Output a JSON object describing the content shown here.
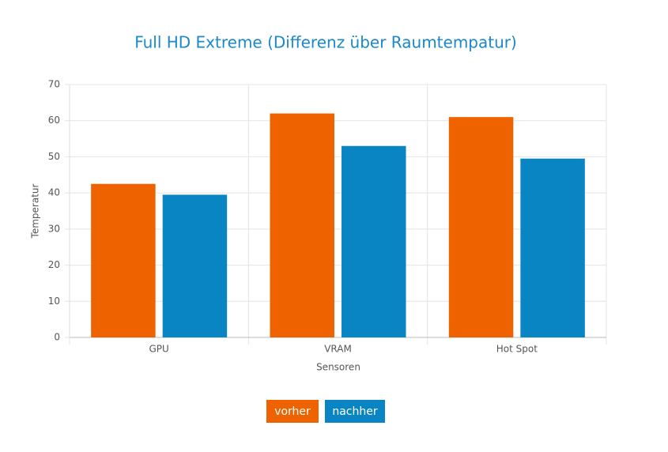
{
  "chart_data": {
    "type": "bar",
    "title": "Full HD Extreme (Differenz über Raumtempatur)",
    "x_label": "Sensoren",
    "y_label": "Temperatur",
    "categories": [
      "GPU",
      "VRAM",
      "Hot Spot"
    ],
    "series": [
      {
        "name": "vorher",
        "color": "#ee6300",
        "values": [
          42.5,
          62,
          61
        ]
      },
      {
        "name": "nachher",
        "color": "#0a85c4",
        "values": [
          39.5,
          53,
          49.5
        ]
      }
    ],
    "ylim": [
      0,
      70
    ],
    "yticks": [
      0,
      10,
      20,
      30,
      40,
      50,
      60,
      70
    ],
    "grid": true
  }
}
